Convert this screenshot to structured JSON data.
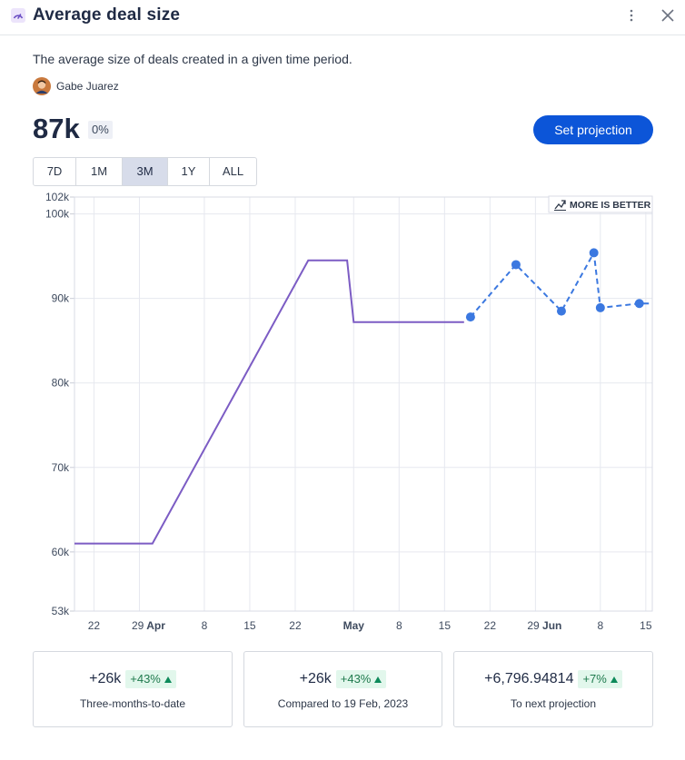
{
  "header": {
    "title": "Average deal size",
    "title_icon": "speedometer-icon",
    "menu_icon": "kebab-menu-icon",
    "close_icon": "close-icon"
  },
  "description": "The average size of deals created in a given time period.",
  "owner": {
    "name": "Gabe Juarez",
    "avatar_icon": "avatar"
  },
  "summary": {
    "value": "87k",
    "change": "0%"
  },
  "projection_button": "Set projection",
  "time_ranges": {
    "options": [
      "7D",
      "1M",
      "3M",
      "1Y",
      "ALL"
    ],
    "selected": "3M"
  },
  "more_is_better": {
    "label": "MORE IS BETTER",
    "icon": "trend-up-icon"
  },
  "colors": {
    "accent": "#0c55d8",
    "actual_line": "#7c5cc4",
    "projection": "#3b78e0",
    "positive": "#1f7a4d"
  },
  "chart_data": {
    "type": "line",
    "title": "",
    "xlabel": "",
    "ylabel": "",
    "xlim": [
      "2023-03-19",
      "2023-06-16"
    ],
    "ylim": [
      53000,
      102000
    ],
    "y_ticks": [
      53000,
      60000,
      70000,
      80000,
      90000,
      100000,
      102000
    ],
    "y_tick_labels": [
      "53k",
      "60k",
      "70k",
      "80k",
      "90k",
      "100k",
      "102k"
    ],
    "x_ticks": [
      {
        "date": "2023-03-22",
        "label": "22"
      },
      {
        "date": "2023-03-29",
        "label": "29",
        "month": "Apr"
      },
      {
        "date": "2023-04-08",
        "label": "8"
      },
      {
        "date": "2023-04-15",
        "label": "15"
      },
      {
        "date": "2023-04-22",
        "label": "22"
      },
      {
        "date": "2023-05-01",
        "label": "",
        "month": "May"
      },
      {
        "date": "2023-05-08",
        "label": "8"
      },
      {
        "date": "2023-05-15",
        "label": "15"
      },
      {
        "date": "2023-05-22",
        "label": "22"
      },
      {
        "date": "2023-05-29",
        "label": "29",
        "month": "Jun"
      },
      {
        "date": "2023-06-08",
        "label": "8"
      },
      {
        "date": "2023-06-15",
        "label": "15"
      }
    ],
    "grid": true,
    "series": [
      {
        "style": "solid",
        "x": [
          "2023-03-19",
          "2023-03-31",
          "2023-04-24",
          "2023-04-30",
          "2023-05-01",
          "2023-05-18"
        ],
        "y": [
          61000,
          61000,
          94500,
          94500,
          87200,
          87200
        ]
      },
      {
        "style": "dashed-markers",
        "x": [
          "2023-05-19",
          "2023-05-26",
          "2023-06-02",
          "2023-06-07",
          "2023-06-08",
          "2023-06-14",
          "2023-06-16"
        ],
        "y": [
          87800,
          94000,
          88500,
          95400,
          88900,
          89400,
          89400
        ],
        "markers": [
          true,
          true,
          true,
          true,
          true,
          true,
          false
        ]
      }
    ]
  },
  "cards": [
    {
      "value": "+26k",
      "pct": "+43%",
      "label": "Three-months-to-date"
    },
    {
      "value": "+26k",
      "pct": "+43%",
      "label": "Compared to 19 Feb, 2023"
    },
    {
      "value": "+6,796.94814",
      "pct": "+7%",
      "label": "To next projection"
    }
  ]
}
